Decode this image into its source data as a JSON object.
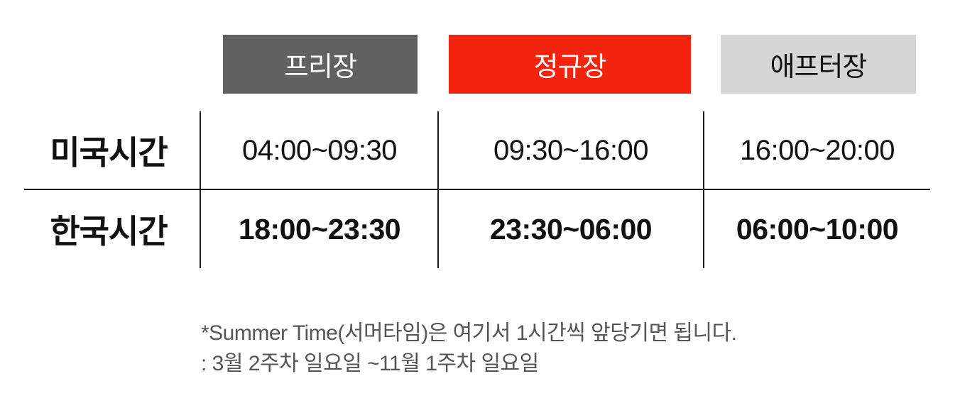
{
  "sessions": {
    "pre": {
      "label": "프리장",
      "bg": "#616161",
      "fg": "#ffffff"
    },
    "reg": {
      "label": "정규장",
      "bg": "#f2230f",
      "fg": "#ffffff"
    },
    "after": {
      "label": "애프터장",
      "bg": "#d6d6d6",
      "fg": "#111111"
    }
  },
  "rows": {
    "us": {
      "label": "미국시간",
      "pre": "04:00~09:30",
      "reg": "09:30~16:00",
      "after": "16:00~20:00"
    },
    "kr": {
      "label": "한국시간",
      "pre": "18:00~23:30",
      "reg": "23:30~06:00",
      "after": "06:00~10:00"
    }
  },
  "notes": {
    "line1": "*Summer Time(서머타임)은 여기서 1시간씩 앞당기면 됩니다.",
    "line2": ": 3월 2주차 일요일 ~11월 1주차 일요일"
  }
}
